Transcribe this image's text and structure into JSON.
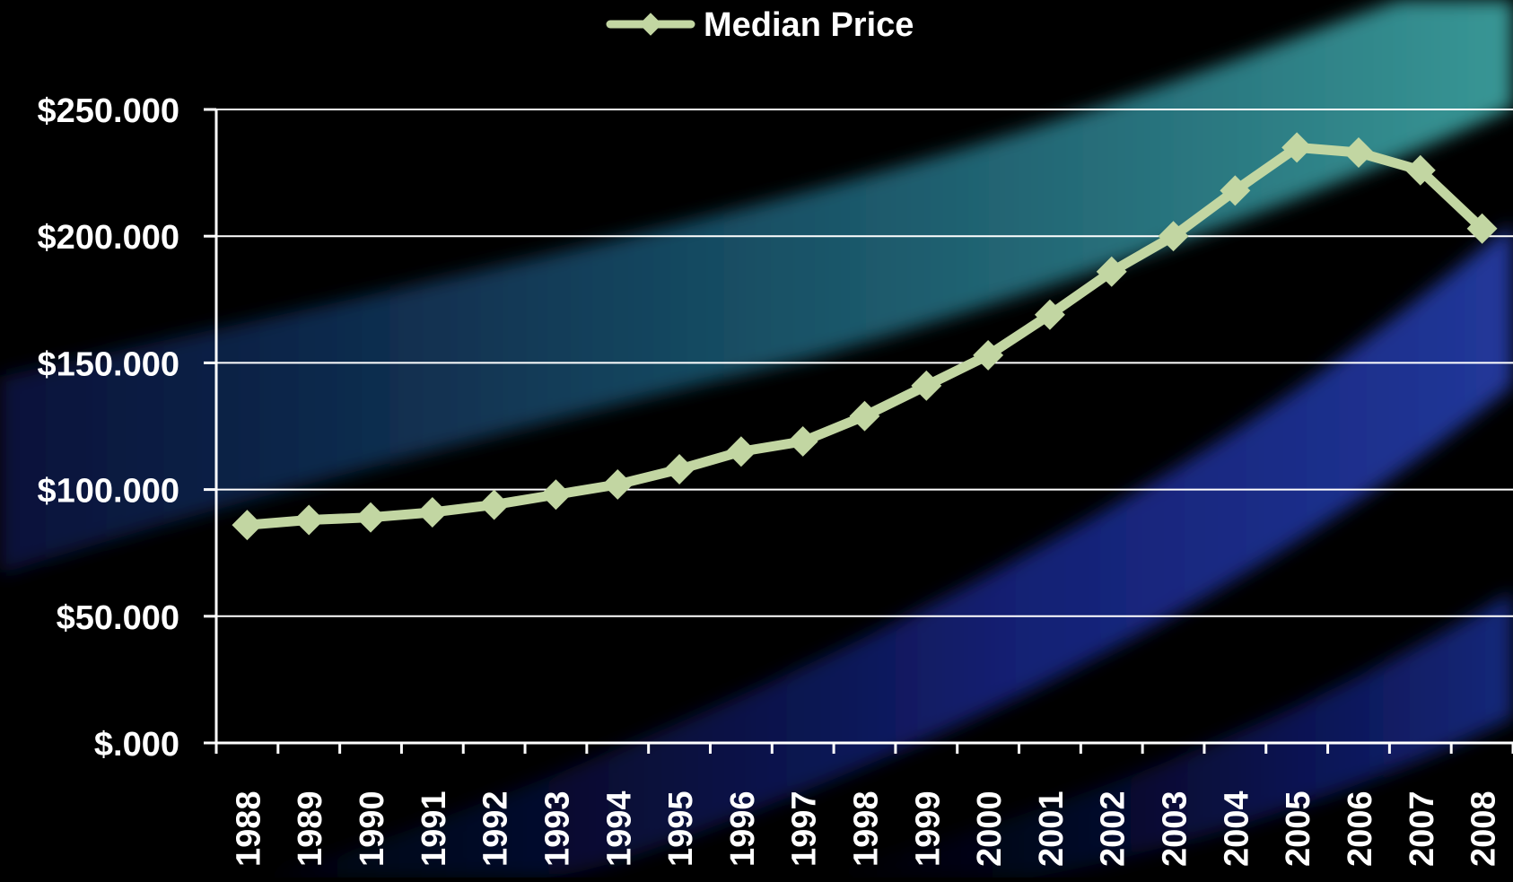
{
  "colors": {
    "background": "#000000",
    "band_blue": "#1a2a8a",
    "band_teal": "#3aa0a0",
    "gridline": "#ffffff",
    "series_line": "#c2d6a2",
    "text": "#ffffff"
  },
  "chart_data": {
    "type": "line",
    "title": "",
    "xlabel": "",
    "ylabel": "",
    "legend": {
      "position": "top-center",
      "marker": "diamond"
    },
    "grid": true,
    "ylim": [
      0,
      250
    ],
    "y_ticks": [
      0,
      50,
      100,
      150,
      200,
      250
    ],
    "y_tick_labels": [
      "$.000",
      "$50.000",
      "$100.000",
      "$150.000",
      "$200.000",
      "$250.000"
    ],
    "categories": [
      "1988",
      "1989",
      "1990",
      "1991",
      "1992",
      "1993",
      "1994",
      "1995",
      "1996",
      "1997",
      "1998",
      "1999",
      "2000",
      "2001",
      "2002",
      "2003",
      "2004",
      "2005",
      "2006",
      "2007",
      "2008"
    ],
    "series": [
      {
        "name": "Median Price",
        "values": [
          86,
          88,
          89,
          91,
          94,
          98,
          102,
          108,
          115,
          119,
          129,
          141,
          153,
          169,
          186,
          200,
          218,
          235,
          233,
          226,
          203
        ]
      }
    ]
  }
}
